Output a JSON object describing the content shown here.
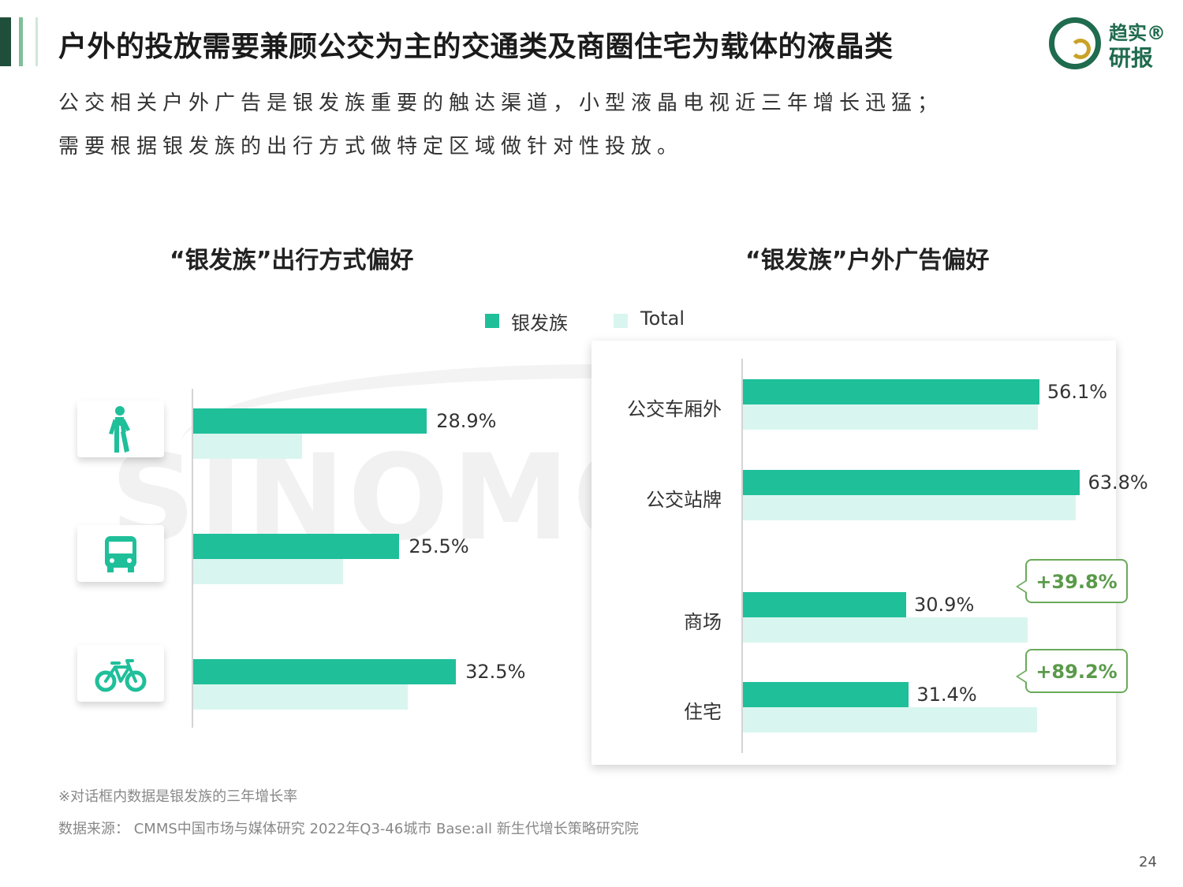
{
  "header": {
    "title": "户外的投放需要兼顾公交为主的交通类及商圈住宅为载体的液晶类",
    "logo_line1": "趋实®",
    "logo_line2": "研报",
    "subtitle_line1": "公交相关户外广告是银发族重要的触达渠道，小型液晶电视近三年增长迅猛；",
    "subtitle_line2": "需要根据银发族的出行方式做特定区域做针对性投放。"
  },
  "watermark": "SINOMONITOR",
  "legend": {
    "items": [
      {
        "label": "银发族",
        "color": "#1fbf9a"
      },
      {
        "label": "Total",
        "color": "#d8f6ef"
      }
    ]
  },
  "chart_data": [
    {
      "type": "bar",
      "orientation": "horizontal",
      "title": "“银发族”出行方式偏好",
      "categories": [
        "步行",
        "公交",
        "骑车"
      ],
      "category_icons": [
        "walking-icon",
        "bus-icon",
        "bicycle-icon"
      ],
      "series": [
        {
          "name": "银发族",
          "values": [
            28.9,
            25.5,
            32.5
          ],
          "labels": [
            "28.9%",
            "25.5%",
            "32.5%"
          ]
        },
        {
          "name": "Total",
          "values": [
            13.5,
            18.5,
            26.5
          ]
        }
      ],
      "xlim": [
        0,
        40
      ],
      "grid": false,
      "legend_position": "top"
    },
    {
      "type": "bar",
      "orientation": "horizontal",
      "title": "“银发族”户外广告偏好",
      "categories": [
        "公交车厢外",
        "公交站牌",
        "商场",
        "住宅"
      ],
      "series": [
        {
          "name": "银发族",
          "values": [
            56.1,
            63.8,
            30.9,
            31.4
          ],
          "labels": [
            "56.1%",
            "63.8%",
            "30.9%",
            "31.4%"
          ]
        },
        {
          "name": "Total",
          "values": [
            55.8,
            63.0,
            53.9,
            55.7
          ]
        }
      ],
      "callouts": [
        {
          "category": "商场",
          "text": "+39.8%"
        },
        {
          "category": "住宅",
          "text": "+89.2%"
        }
      ],
      "xlim": [
        0,
        70
      ],
      "grid": false,
      "legend_position": "top"
    }
  ],
  "footer": {
    "note": "※对话框内数据是银发族的三年增长率",
    "source": "数据来源： CMMS中国市场与媒体研究 2022年Q3-46城市 Base:all  新生代增长策略研究院",
    "page_number": "24"
  }
}
